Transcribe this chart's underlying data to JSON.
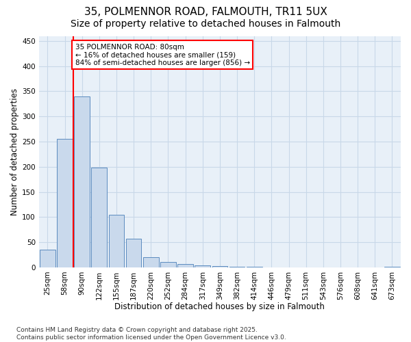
{
  "title_line1": "35, POLMENNOR ROAD, FALMOUTH, TR11 5UX",
  "title_line2": "Size of property relative to detached houses in Falmouth",
  "xlabel": "Distribution of detached houses by size in Falmouth",
  "ylabel": "Number of detached properties",
  "bar_labels": [
    "25sqm",
    "58sqm",
    "90sqm",
    "122sqm",
    "155sqm",
    "187sqm",
    "220sqm",
    "252sqm",
    "284sqm",
    "317sqm",
    "349sqm",
    "382sqm",
    "414sqm",
    "446sqm",
    "479sqm",
    "511sqm",
    "543sqm",
    "576sqm",
    "608sqm",
    "641sqm",
    "673sqm"
  ],
  "bar_values": [
    35,
    255,
    340,
    198,
    104,
    57,
    20,
    11,
    7,
    4,
    2,
    1,
    1,
    0,
    0,
    0,
    0,
    0,
    0,
    0,
    1
  ],
  "bar_color": "#c9d9ec",
  "bar_edge_color": "#5b8bbf",
  "grid_color": "#c8d8e8",
  "background_color": "#e8f0f8",
  "vline_color": "red",
  "vline_pos": 1.5,
  "ylim": [
    0,
    460
  ],
  "yticks": [
    0,
    50,
    100,
    150,
    200,
    250,
    300,
    350,
    400,
    450
  ],
  "annotation_text": "35 POLMENNOR ROAD: 80sqm\n← 16% of detached houses are smaller (159)\n84% of semi-detached houses are larger (856) →",
  "annotation_box_color": "white",
  "annotation_box_edge": "red",
  "footer_text": "Contains HM Land Registry data © Crown copyright and database right 2025.\nContains public sector information licensed under the Open Government Licence v3.0.",
  "title_fontsize": 11,
  "subtitle_fontsize": 10,
  "axis_label_fontsize": 8.5,
  "tick_fontsize": 7.5,
  "annotation_fontsize": 7.5,
  "footer_fontsize": 6.5
}
